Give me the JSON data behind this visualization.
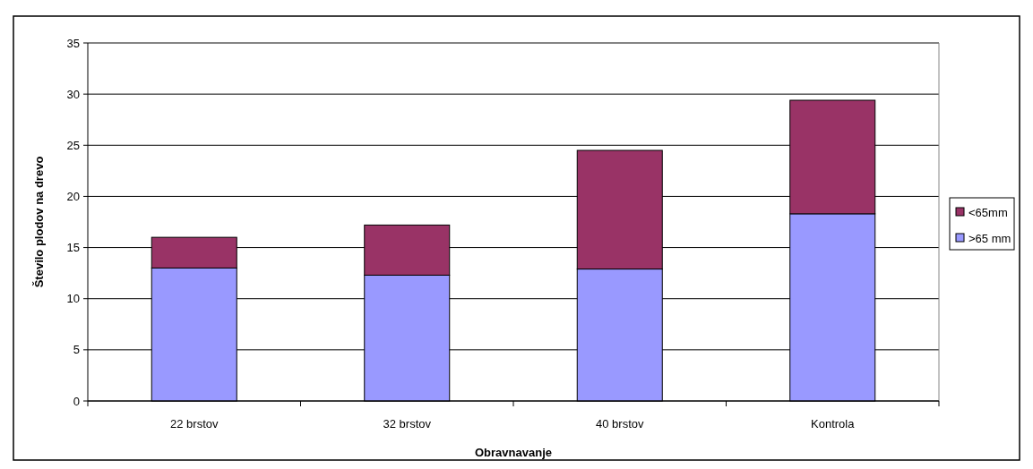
{
  "chart_data": {
    "type": "bar",
    "stacked": true,
    "xlabel": "Obravnavanje",
    "ylabel": "Število plodov na drevo",
    "categories": [
      "22 brstov",
      "32 brstov",
      "40 brstov",
      "Kontrola"
    ],
    "series": [
      {
        "name": ">65 mm",
        "color": "#9999ff",
        "values": [
          13.0,
          12.3,
          12.9,
          18.3
        ]
      },
      {
        "name": "<65mm",
        "color": "#993366",
        "values": [
          3.0,
          4.9,
          11.6,
          11.1
        ]
      }
    ],
    "ylim": [
      0,
      35
    ],
    "yticks": [
      0,
      5,
      10,
      15,
      20,
      25,
      30,
      35
    ],
    "grid": "y",
    "legend": "right"
  }
}
